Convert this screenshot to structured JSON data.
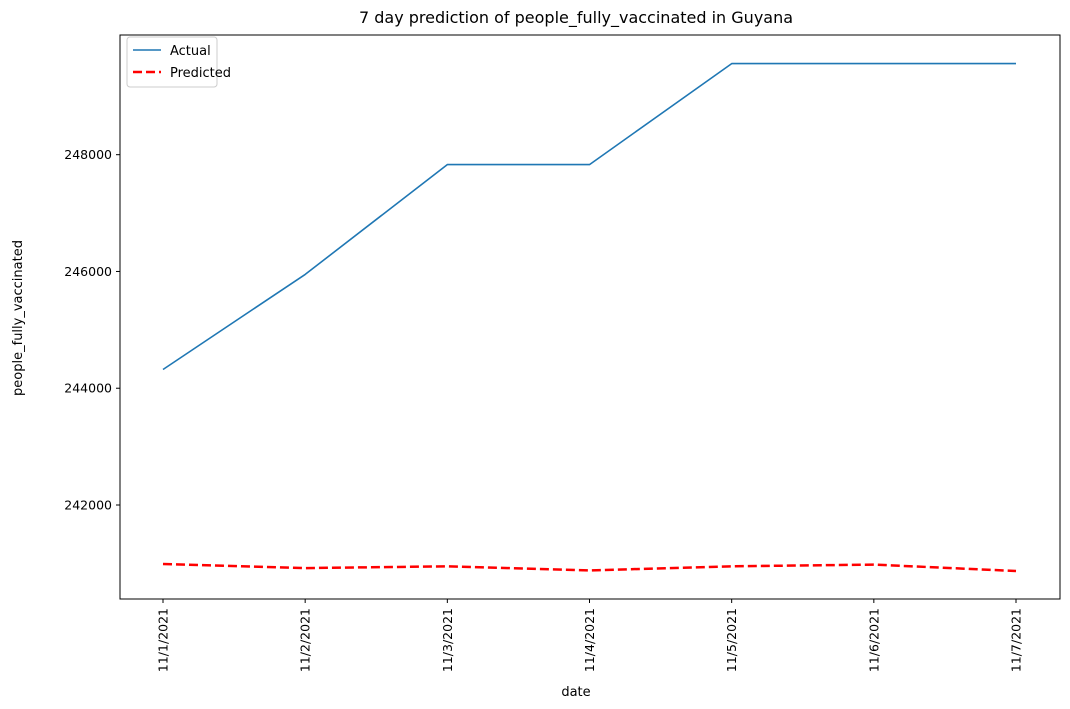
{
  "chart_data": {
    "type": "line",
    "title": "7 day prediction of people_fully_vaccinated in Guyana",
    "xlabel": "date",
    "ylabel": "people_fully_vaccinated",
    "categories": [
      "11/1/2021",
      "11/2/2021",
      "11/3/2021",
      "11/4/2021",
      "11/5/2021",
      "11/6/2021",
      "11/7/2021"
    ],
    "yticks": [
      242000,
      244000,
      246000,
      248000
    ],
    "ylim": [
      240390,
      250050
    ],
    "grid": false,
    "legend_position": "upper-left",
    "series": [
      {
        "name": "Actual",
        "color": "#1f77b4",
        "style": "solid",
        "values": [
          244320,
          245950,
          247830,
          247830,
          249560,
          249560,
          249560
        ]
      },
      {
        "name": "Predicted",
        "color": "#ff0000",
        "style": "dashed",
        "values": [
          240990,
          240920,
          240950,
          240880,
          240950,
          240980,
          240870
        ]
      }
    ]
  }
}
